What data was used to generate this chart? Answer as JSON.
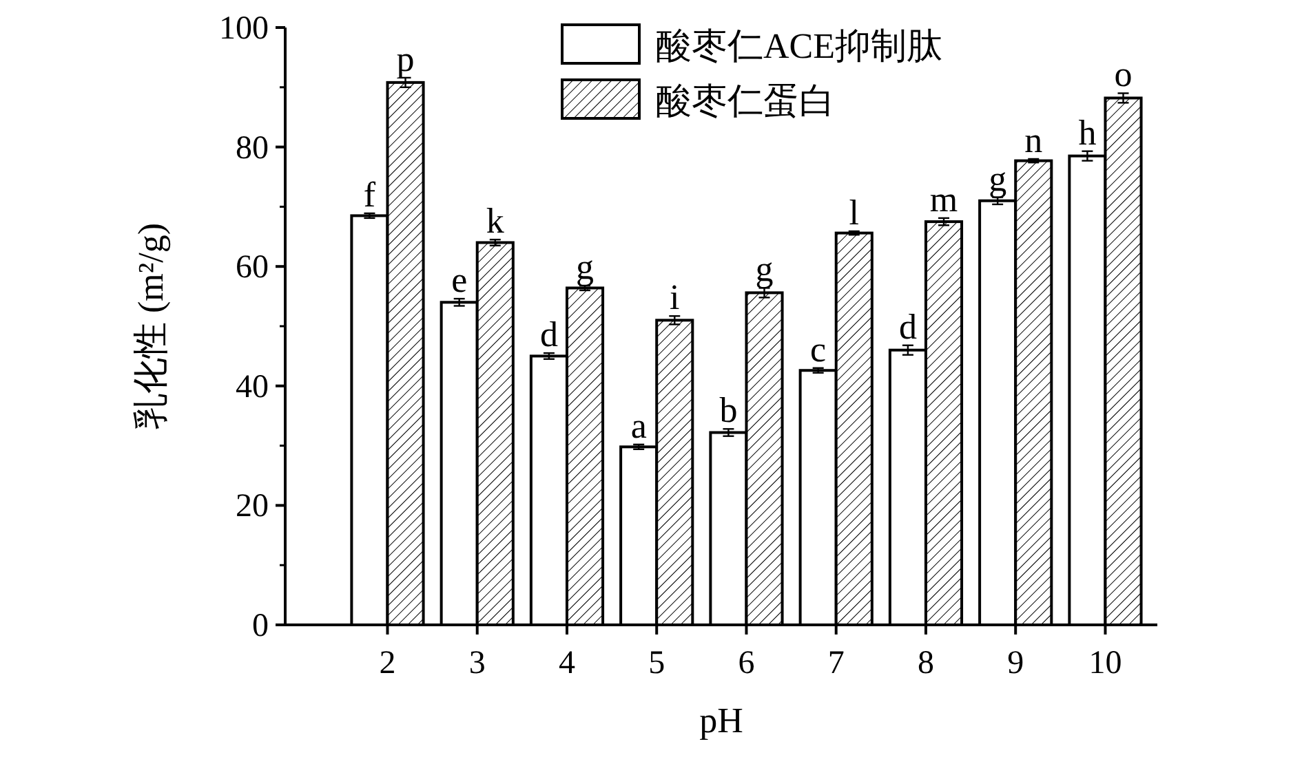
{
  "chart_data": {
    "type": "bar",
    "xlabel": "pH",
    "ylabel": "乳化性 (m²/g)",
    "categories": [
      "2",
      "3",
      "4",
      "5",
      "6",
      "7",
      "8",
      "9",
      "10"
    ],
    "series": [
      {
        "name": "酸枣仁ACE抑制肽",
        "color": "#ffffff",
        "values": [
          68.5,
          54,
          45,
          29.8,
          32.2,
          42.6,
          46,
          71,
          78.5
        ],
        "errors": [
          0.4,
          0.6,
          0.5,
          0.4,
          0.6,
          0.4,
          0.8,
          0.6,
          0.8
        ]
      },
      {
        "name": "酸枣仁蛋白",
        "color": "#000000",
        "values": [
          90.8,
          64,
          56.4,
          51,
          55.6,
          65.6,
          67.5,
          77.7,
          88.2
        ],
        "errors": [
          0.8,
          0.5,
          0.4,
          0.7,
          0.8,
          0.3,
          0.6,
          0.3,
          0.8
        ]
      }
    ],
    "ylim": [
      0,
      100
    ],
    "yticks": [
      0,
      20,
      40,
      60,
      80,
      100
    ],
    "legend": "top right",
    "annotations": [
      {
        "text": "f",
        "x": "2",
        "y": 68.5
      },
      {
        "text": "p",
        "x": "2",
        "y": 90.8
      },
      {
        "text": "e",
        "x": "3",
        "y": 54
      },
      {
        "text": "k",
        "x": "3",
        "y": 64
      },
      {
        "text": "d",
        "x": "4",
        "y": 45
      },
      {
        "text": "g",
        "x": "4",
        "y": 56.4
      },
      {
        "text": "a",
        "x": "5",
        "y": 29.8
      },
      {
        "text": "i",
        "x": "5",
        "y": 51
      },
      {
        "text": "b",
        "x": "6",
        "y": 32.2
      },
      {
        "text": "g",
        "x": "6",
        "y": 55.6
      },
      {
        "text": "c",
        "x": "7",
        "y": 42.6
      },
      {
        "text": "l",
        "x": "7",
        "y": 65.6
      },
      {
        "text": "d",
        "x": "8",
        "y": 46
      },
      {
        "text": "m",
        "x": "8",
        "y": 67.5
      },
      {
        "text": "g",
        "x": "9",
        "y": 71
      },
      {
        "text": "n",
        "x": "9",
        "y": 77.7
      },
      {
        "text": "h",
        "x": "10",
        "y": 78.5
      },
      {
        "text": "o",
        "x": "10",
        "y": 88.2
      }
    ]
  }
}
